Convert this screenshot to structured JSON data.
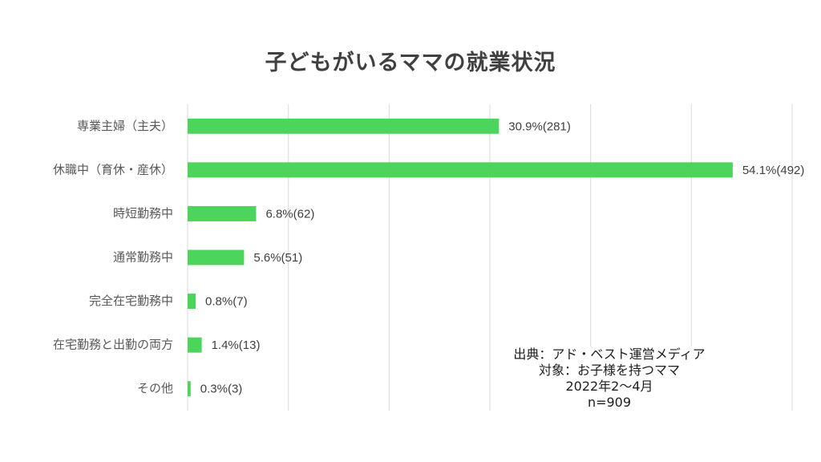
{
  "chart_data": {
    "type": "bar",
    "orientation": "horizontal",
    "title": "子どもがいるママの就業状況",
    "categories": [
      "専業主婦（主夫）",
      "休職中（育休・産休）",
      "時短勤務中",
      "通常勤務中",
      "完全在宅勤務中",
      "在宅勤務と出勤の両方",
      "その他"
    ],
    "values": [
      30.9,
      54.1,
      6.8,
      5.6,
      0.8,
      1.4,
      0.3
    ],
    "data_labels": [
      "30.9%(281)",
      "54.1%(492)",
      "6.8%(62)",
      "5.6%(51)",
      "0.8%(7)",
      "1.4%(13)",
      "0.3%(3)"
    ],
    "xlim": [
      0,
      60
    ],
    "xlabel": "",
    "ylabel": "",
    "grid": true,
    "bar_color": "#4cd45c",
    "grid_color": "#d9d9d9"
  },
  "source_note": {
    "lines": [
      "出典：アド・ベスト運営メディア",
      "対象：お子様を持つママ",
      "2022年2〜4月",
      "n=909"
    ]
  }
}
